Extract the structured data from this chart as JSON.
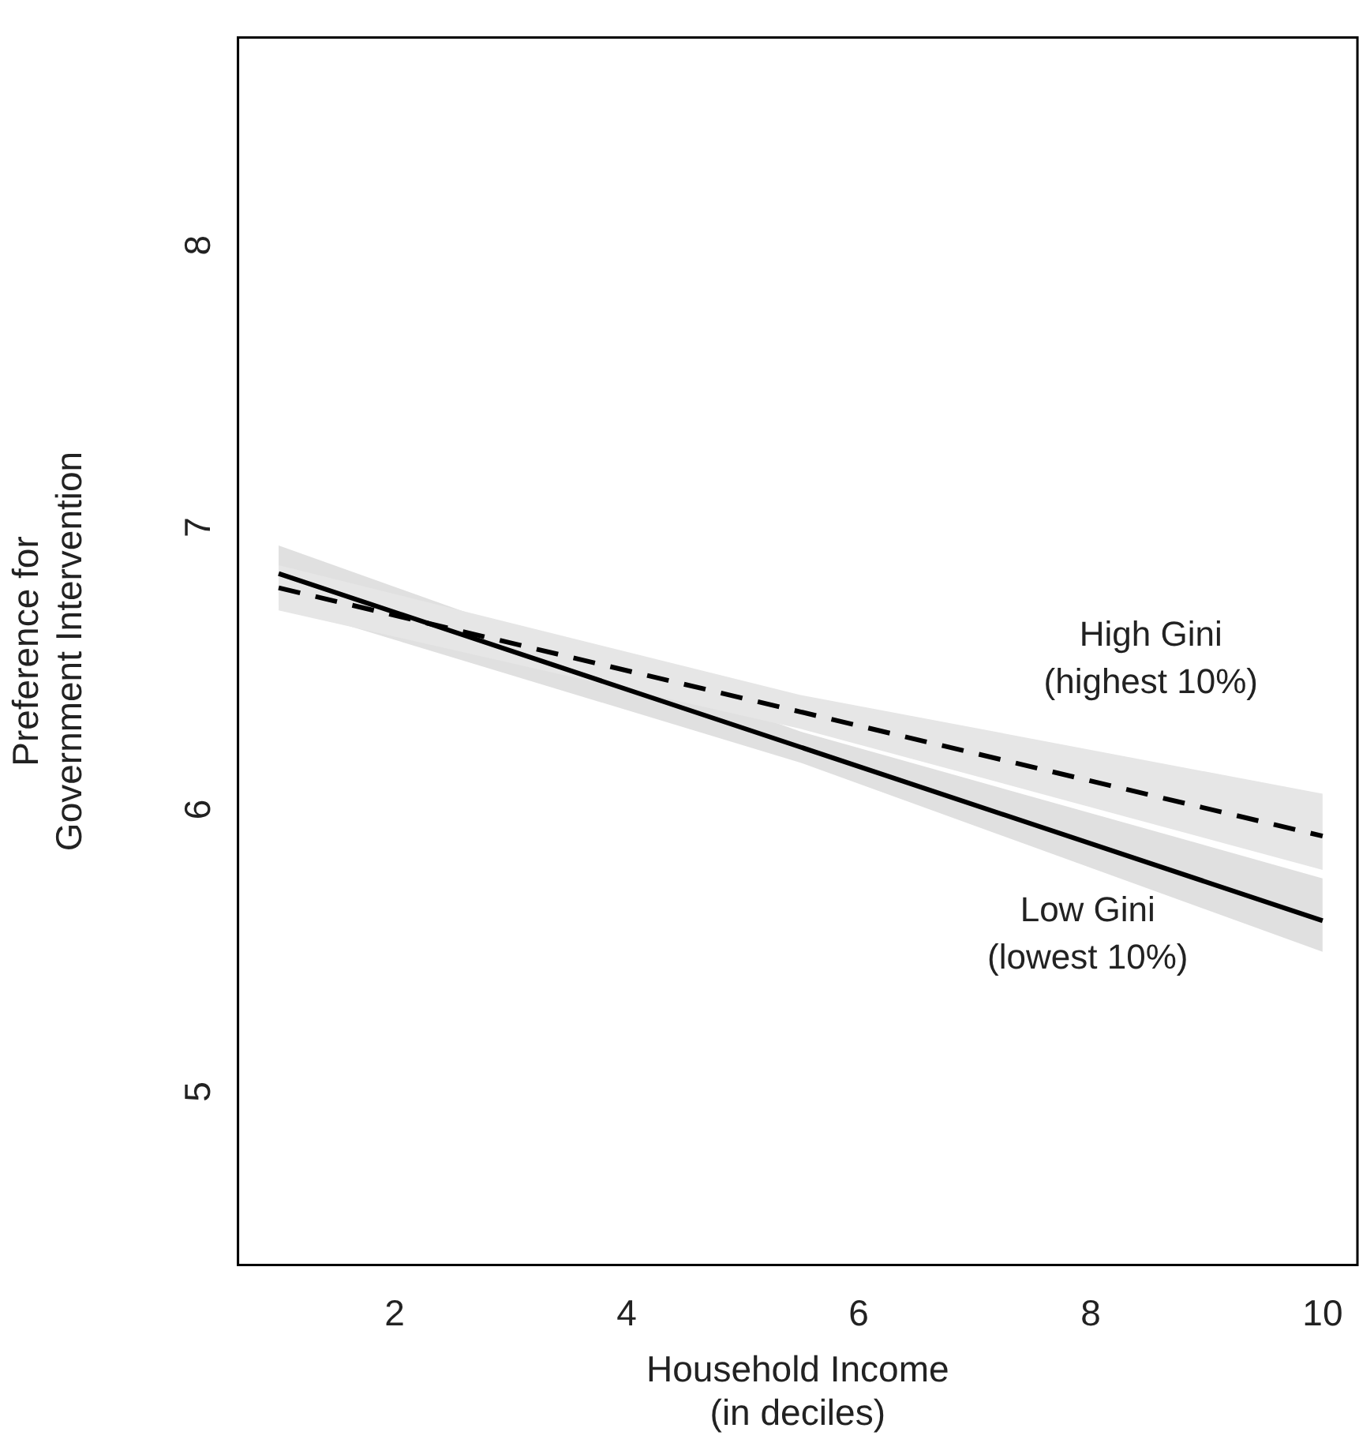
{
  "chart_data": {
    "type": "line",
    "xlabel": "Household Income\n(in deciles)",
    "ylabel": "Preference for\nGovernment Intervention",
    "x": [
      1,
      5.5,
      10
    ],
    "series": [
      {
        "name": "High Gini\n(highest 10%)",
        "color": "#000000",
        "line_style": "dashed",
        "values": [
          6.75,
          6.31,
          5.87
        ],
        "lower": [
          6.67,
          6.25,
          5.75
        ],
        "upper": [
          6.83,
          6.37,
          6.02
        ]
      },
      {
        "name": "Low Gini\n(lowest 10%)",
        "color": "#000000",
        "line_style": "solid",
        "values": [
          6.8,
          6.185,
          5.57
        ],
        "lower": [
          6.69,
          6.13,
          5.46
        ],
        "upper": [
          6.9,
          6.24,
          5.72
        ]
      }
    ],
    "xlim": [
      0.65,
      10.3
    ],
    "ylim": [
      4.35,
      8.7
    ],
    "xticks": [
      2,
      4,
      6,
      8,
      10
    ],
    "yticks": [
      5,
      6,
      7,
      8
    ],
    "grid": false,
    "legend": false,
    "marker": "none"
  }
}
